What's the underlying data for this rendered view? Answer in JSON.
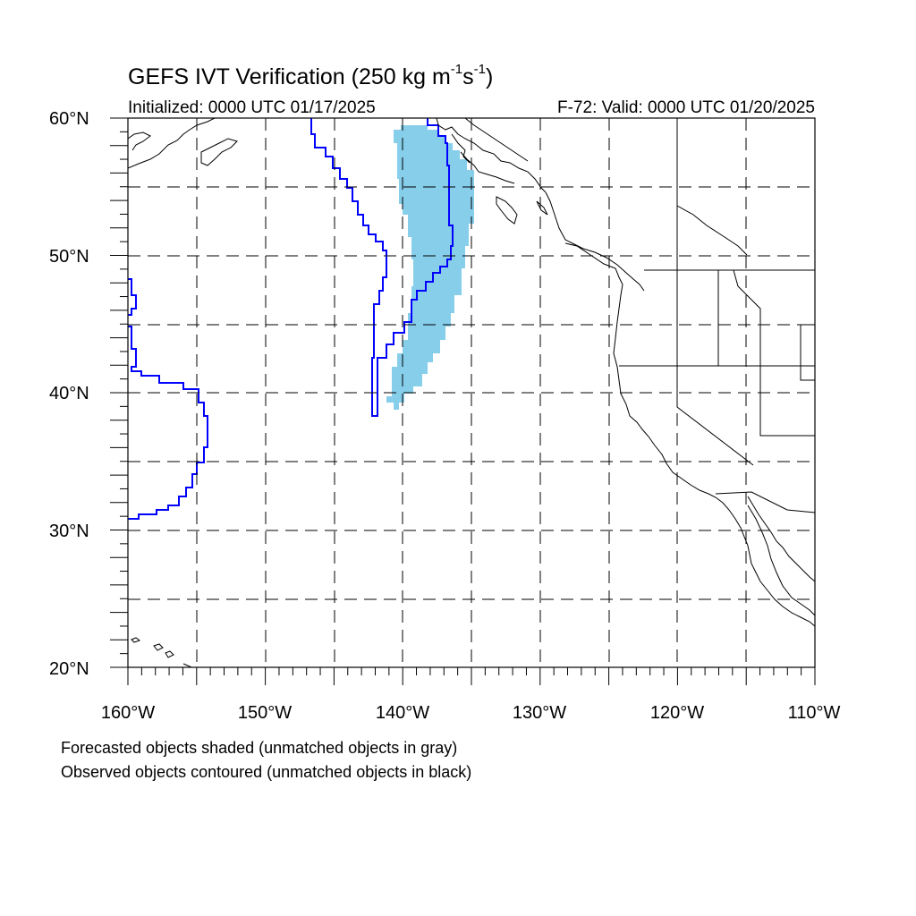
{
  "title": {
    "main": "GEFS IVT Verification (250 kg m",
    "exp1": "-1",
    "mid": "s",
    "exp2": "-1",
    "end": ")"
  },
  "initialized": "Initialized: 0000 UTC 01/17/2025",
  "valid": "F-72: Valid: 0000 UTC 01/20/2025",
  "lat_labels": [
    "60°N",
    "50°N",
    "40°N",
    "30°N",
    "20°N"
  ],
  "lon_labels": [
    "160°W",
    "150°W",
    "140°W",
    "130°W",
    "120°W",
    "110°W"
  ],
  "notes": [
    "Forecasted objects shaded (unmatched objects in gray)",
    "Observed objects contoured (unmatched objects in black)"
  ],
  "colors": {
    "forecast_fill": "#87ceeb",
    "observed_contour": "#0000ff",
    "coastline": "#000000",
    "grid": "#000000"
  }
}
